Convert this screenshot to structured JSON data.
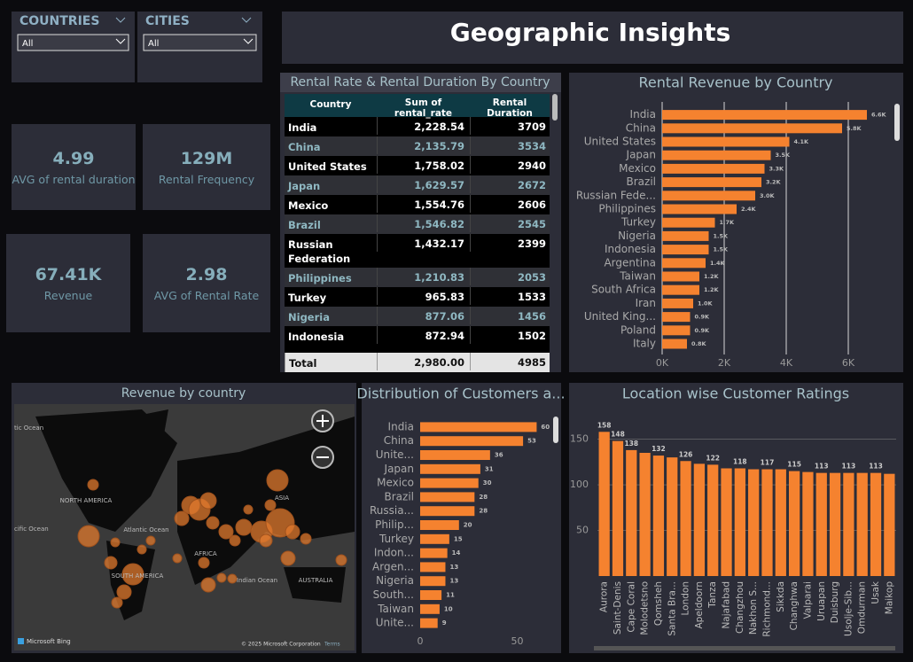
{
  "header": {
    "title": "Geographic Insights"
  },
  "slicers": [
    {
      "label": "COUNTRIES",
      "selection": "All"
    },
    {
      "label": "CITIES",
      "selection": "All"
    }
  ],
  "cards": [
    {
      "value": "4.99",
      "label": "AVG of rental duration"
    },
    {
      "value": "129M",
      "label": "Rental Frequency"
    },
    {
      "value": "67.41K",
      "label": "Revenue"
    },
    {
      "value": "2.98",
      "label": "AVG of Rental Rate"
    }
  ],
  "table": {
    "title": "Rental Rate & Rental Duration By Country",
    "columns": [
      "Country",
      "Sum of rental_rate",
      "Rental Duration"
    ],
    "rows": [
      [
        "India",
        "2,228.54",
        "3709"
      ],
      [
        "China",
        "2,135.79",
        "3534"
      ],
      [
        "United States",
        "1,758.02",
        "2940"
      ],
      [
        "Japan",
        "1,629.57",
        "2672"
      ],
      [
        "Mexico",
        "1,554.76",
        "2606"
      ],
      [
        "Brazil",
        "1,546.82",
        "2545"
      ],
      [
        "Russian Federation",
        "1,432.17",
        "2399"
      ],
      [
        "Philippines",
        "1,210.83",
        "2053"
      ],
      [
        "Turkey",
        "965.83",
        "1533"
      ],
      [
        "Nigeria",
        "877.06",
        "1456"
      ],
      [
        "Indonesia",
        "872.94",
        "1502"
      ]
    ],
    "total": [
      "Total",
      "2,980.00",
      "4985"
    ]
  },
  "map": {
    "title": "Revenue by country",
    "labels": [
      "NORTH AMERICA",
      "SOUTH AMERICA",
      "AFRICA",
      "ASIA",
      "AUSTRALIA",
      "Atlantic Ocean",
      "Indian Ocean",
      "tic Ocean",
      "cific Ocean"
    ],
    "attribution": "Microsoft Bing",
    "copyright": "© 2025 Microsoft Corporation",
    "terms": "Terms"
  },
  "chart_data": [
    {
      "type": "bar",
      "orientation": "horizontal",
      "title": "Rental Revenue by Country",
      "categories": [
        "India",
        "China",
        "United States",
        "Japan",
        "Mexico",
        "Brazil",
        "Russian Fede...",
        "Philippines",
        "Turkey",
        "Nigeria",
        "Indonesia",
        "Argentina",
        "Taiwan",
        "South Africa",
        "Iran",
        "United King...",
        "Poland",
        "Italy"
      ],
      "values": [
        6600,
        5800,
        4100,
        3500,
        3300,
        3200,
        3000,
        2400,
        1700,
        1500,
        1500,
        1400,
        1200,
        1200,
        1000,
        900,
        900,
        800
      ],
      "value_labels": [
        "6.6K",
        "5.8K",
        "4.1K",
        "3.5K",
        "3.3K",
        "3.2K",
        "3.0K",
        "2.4K",
        "1.7K",
        "1.5K",
        "1.5K",
        "1.4K",
        "1.2K",
        "1.2K",
        "1.0K",
        "0.9K",
        "0.9K",
        "0.8K"
      ],
      "xlim": [
        0,
        7400
      ],
      "xticks": [
        {
          "value": 0,
          "label": "0K"
        },
        {
          "value": 2000,
          "label": "2K"
        },
        {
          "value": 4000,
          "label": "4K"
        },
        {
          "value": 6000,
          "label": "6K"
        }
      ],
      "color": "#f5822f",
      "grid": true
    },
    {
      "type": "bar",
      "orientation": "horizontal",
      "title": "Distribution of Customers a...",
      "categories": [
        "India",
        "China",
        "Unite...",
        "Japan",
        "Mexico",
        "Brazil",
        "Russia...",
        "Philip...",
        "Turkey",
        "Indon...",
        "Argen...",
        "Nigeria",
        "South...",
        "Taiwan",
        "Unite..."
      ],
      "values": [
        60,
        53,
        36,
        31,
        30,
        28,
        28,
        20,
        15,
        14,
        13,
        13,
        11,
        10,
        9
      ],
      "xlim": [
        0,
        63
      ],
      "xticks": [
        0,
        50
      ],
      "color": "#f5822f",
      "grid": false
    },
    {
      "type": "bar",
      "orientation": "vertical",
      "title": "Location wise Customer Ratings",
      "categories": [
        "Aurora",
        "Saint-Denis",
        "Cape Coral",
        "Molodetsno",
        "Qomsheh",
        "Santa Bra...",
        "London",
        "Apeldoorn",
        "Tanza",
        "Najafabad",
        "Changzhou",
        "Nakhon S...",
        "Richmond...",
        "Sikkda",
        "Changhwa",
        "Valparai",
        "Uruapan",
        "Duisburg",
        "Usolje-Sib...",
        "Omdurman",
        "Usak",
        "Maikop"
      ],
      "values": [
        158,
        148,
        138,
        135,
        132,
        130,
        126,
        123,
        122,
        118,
        118,
        117,
        117,
        117,
        115,
        114,
        113,
        113,
        113,
        113,
        113,
        112
      ],
      "value_labels": [
        "158",
        "148",
        "138",
        null,
        "132",
        null,
        "126",
        null,
        "122",
        null,
        "118",
        null,
        "117",
        null,
        "115",
        null,
        "113",
        null,
        "113",
        null,
        "113",
        null
      ],
      "ylim": [
        0,
        185
      ],
      "yticks": [
        50,
        100,
        150
      ],
      "color": "#f5822f",
      "grid": true
    }
  ]
}
